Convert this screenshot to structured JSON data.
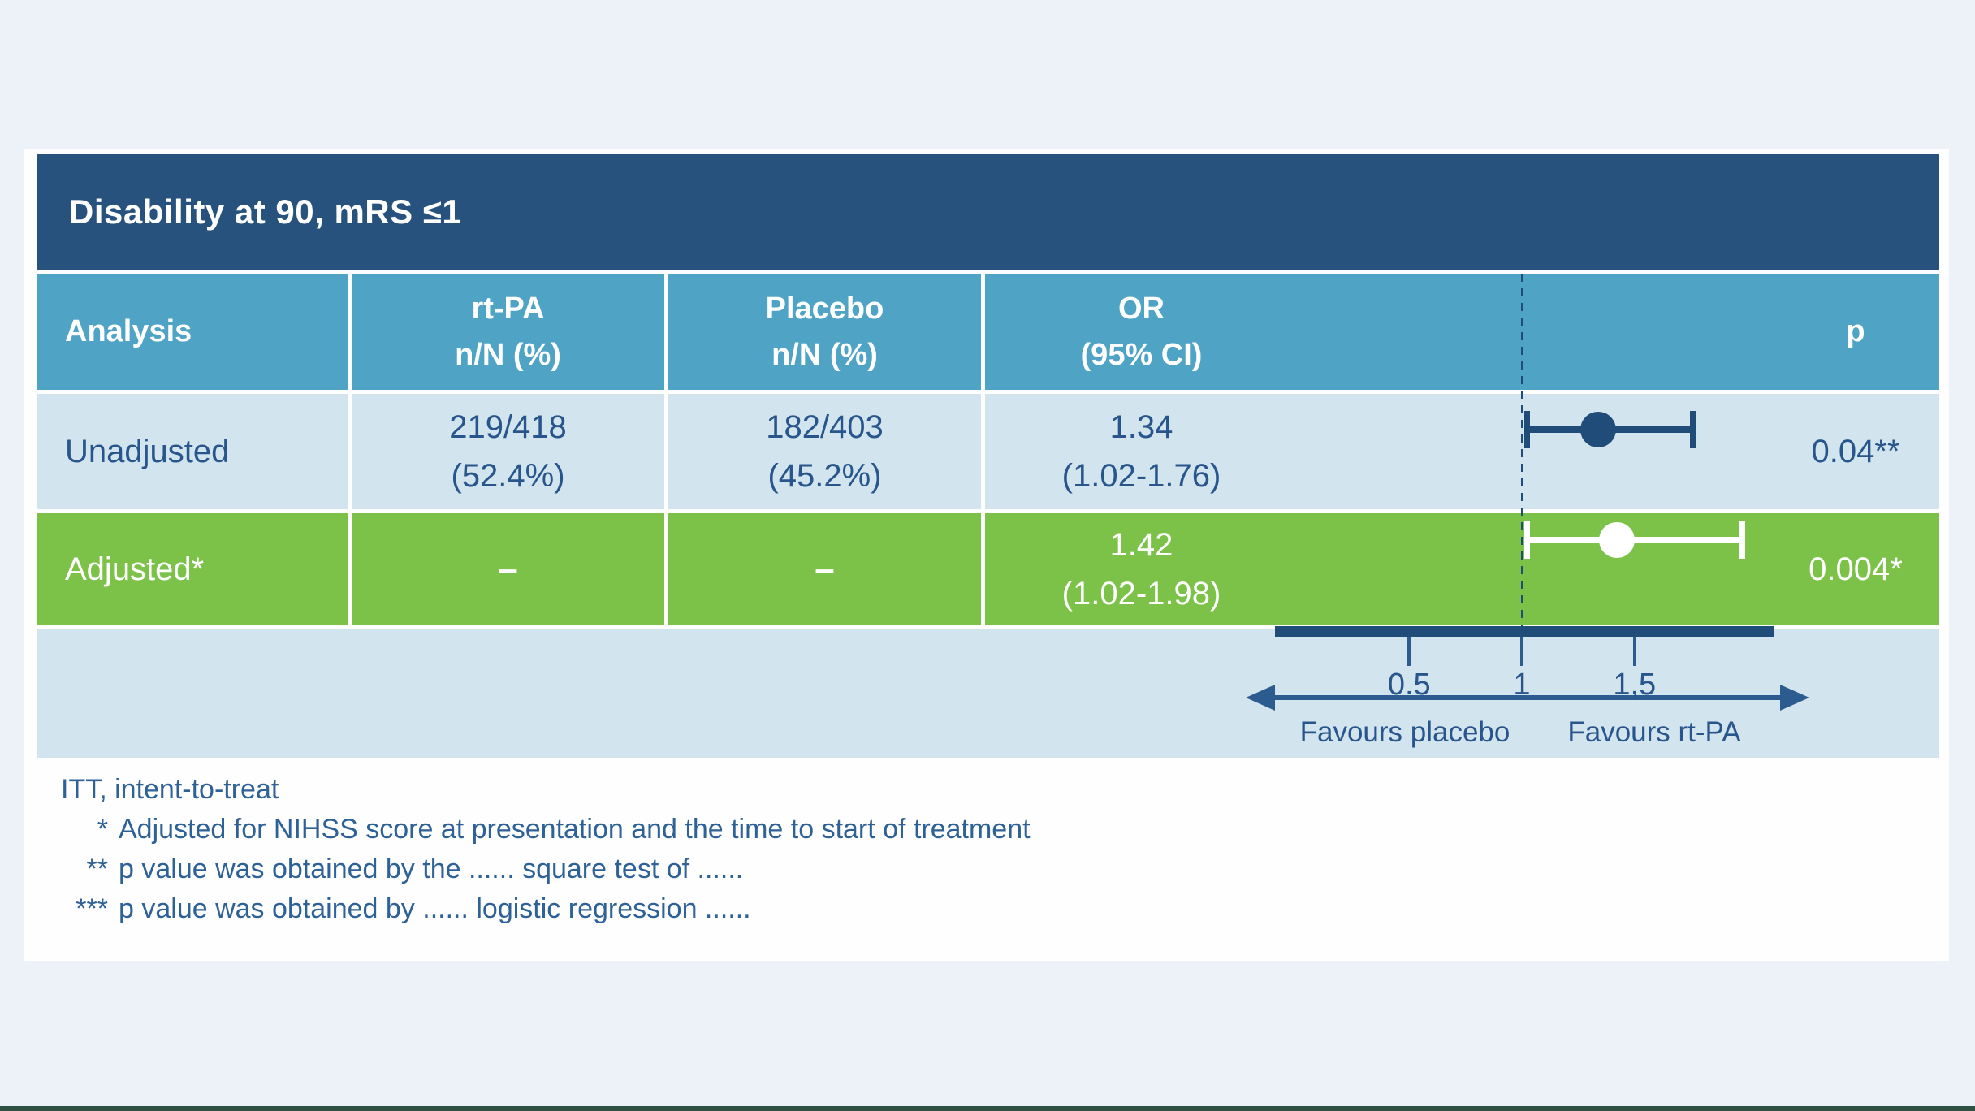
{
  "page": {
    "background": "#EDF2F8",
    "bottom_strip_color": "#2E5143"
  },
  "table": {
    "title": "Disability at 90, mRS ≤1",
    "columns": {
      "analysis": "Analysis",
      "rtpa_line1": "rt-PA",
      "rtpa_line2": "n/N (%)",
      "placebo_line1": "Placebo",
      "placebo_line2": "n/N (%)",
      "or_line1": "OR",
      "or_line2": "(95% CI)",
      "p": "p"
    }
  },
  "chart_data": {
    "type": "forest",
    "title": "Disability at 90, mRS ≤1",
    "x_axis": {
      "ticks": [
        0.5,
        1,
        1.5
      ],
      "tick_labels": [
        "0.5",
        "1",
        "1,5"
      ],
      "reference_line": 1,
      "favours_left": "Favours placebo",
      "favours_right": "Favours rt-PA",
      "scale": "linear"
    },
    "rows": [
      {
        "analysis": "Unadjusted",
        "rtpa_line1": "219/418",
        "rtpa_line2": "(52.4%)",
        "placebo_line1": "182/403",
        "placebo_line2": "(45.2%)",
        "or": 1.34,
        "ci_low": 1.02,
        "ci_high": 1.76,
        "or_line1": "1.34",
        "or_line2": "(1.02-1.76)",
        "p": "0.04**",
        "marker_color": "#1F4C79"
      },
      {
        "analysis": "Adjusted*",
        "rtpa": "–",
        "placebo": "–",
        "or": 1.42,
        "ci_low": 1.02,
        "ci_high": 1.98,
        "or_line1": "1.42",
        "or_line2": "(1.02-1.98)",
        "p": "0.004*",
        "marker_color": "#FFFFFF"
      }
    ]
  },
  "footnotes": [
    {
      "marker": "",
      "text": "ITT, intent-to-treat"
    },
    {
      "marker": "*",
      "text": "Adjusted for NIHSS score at presentation and the time to start of treatment"
    },
    {
      "marker": "**",
      "text": "p value was obtained by the ...... square test of ......"
    },
    {
      "marker": "***",
      "text": "p value was obtained by ...... logistic regression ......"
    }
  ],
  "colors": {
    "title_bar": "#26527D",
    "header_blue": "#4FA3C5",
    "row_light": "#D2E4EE",
    "row_green": "#7CC249",
    "navy": "#1F4C79",
    "cell_text": "#28568C",
    "footnote_text": "#2E6195"
  }
}
